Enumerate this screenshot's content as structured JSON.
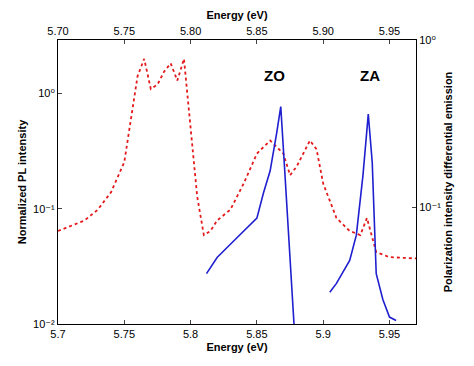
{
  "chart_data": {
    "type": "line",
    "log": "y",
    "grid": false,
    "x_label": "Energy (eV)",
    "x2_label": "Energy (eV)",
    "y_label": "Normalized PL intensity",
    "y2_label": "Polarization intensity differential emission",
    "xlim": [
      5.7,
      5.97
    ],
    "xticks": [
      5.7,
      5.75,
      5.8,
      5.85,
      5.9,
      5.95
    ],
    "x2ticks": [
      {
        "value": 5.7,
        "label": "5.70"
      },
      {
        "value": 5.75,
        "label": "5.75"
      },
      {
        "value": 5.8,
        "label": "5.80"
      },
      {
        "value": 5.85,
        "label": "5.85"
      },
      {
        "value": 5.9,
        "label": "5.90"
      },
      {
        "value": 5.95,
        "label": "5.95"
      }
    ],
    "ylim": [
      0.01,
      2.9
    ],
    "yticks": [
      {
        "value": 0.01,
        "label": "10⁻²"
      },
      {
        "value": 0.1,
        "label": "10⁻¹"
      },
      {
        "value": 1,
        "label": "10⁰"
      }
    ],
    "y2lim": [
      0.02,
      1
    ],
    "y2ticks": [
      {
        "value": 0.1,
        "label": "10⁻¹"
      },
      {
        "value": 1,
        "label": "10⁰"
      }
    ],
    "series": [
      {
        "color": "#e31a1c",
        "line_style": "dotted",
        "x": [
          5.7,
          5.72,
          5.73,
          5.74,
          5.75,
          5.755,
          5.76,
          5.765,
          5.77,
          5.775,
          5.78,
          5.785,
          5.79,
          5.795,
          5.8,
          5.805,
          5.81,
          5.815,
          5.82,
          5.83,
          5.84,
          5.85,
          5.86,
          5.87,
          5.875,
          5.88,
          5.89,
          5.895,
          5.9,
          5.91,
          5.92,
          5.928,
          5.933,
          5.94,
          5.95,
          5.97
        ],
        "values": [
          0.064,
          0.079,
          0.098,
          0.139,
          0.253,
          0.597,
          1.41,
          1.99,
          1.09,
          1.19,
          1.54,
          1.82,
          1.29,
          1.99,
          0.5,
          0.127,
          0.059,
          0.064,
          0.079,
          0.098,
          0.165,
          0.3,
          0.39,
          0.3,
          0.195,
          0.232,
          0.39,
          0.327,
          0.165,
          0.083,
          0.064,
          0.059,
          0.083,
          0.042,
          0.038,
          0.037
        ]
      },
      {
        "color": "#1f1fd0",
        "line_style": "solid",
        "axis": "y2",
        "x": [
          5.812,
          5.82,
          5.83,
          5.84,
          5.85,
          5.855,
          5.86,
          5.865,
          5.868,
          5.871,
          5.875,
          5.878,
          5.89,
          5.905,
          5.91,
          5.92,
          5.925,
          5.93,
          5.934,
          5.937,
          5.94,
          5.945,
          5.95,
          5.955
        ],
        "values": [
          0.04,
          0.05,
          0.06,
          0.072,
          0.086,
          0.122,
          0.165,
          0.28,
          0.4,
          0.165,
          0.045,
          0.02,
          null,
          0.031,
          0.035,
          0.048,
          0.068,
          0.155,
          0.36,
          0.185,
          0.04,
          0.028,
          0.022,
          0.021
        ]
      }
    ],
    "annotations": [
      {
        "text": "ZO",
        "x": 5.863,
        "y": 0.53,
        "axis": "y2"
      },
      {
        "text": "ZA",
        "x": 5.935,
        "y": 0.53,
        "axis": "y2"
      }
    ]
  }
}
